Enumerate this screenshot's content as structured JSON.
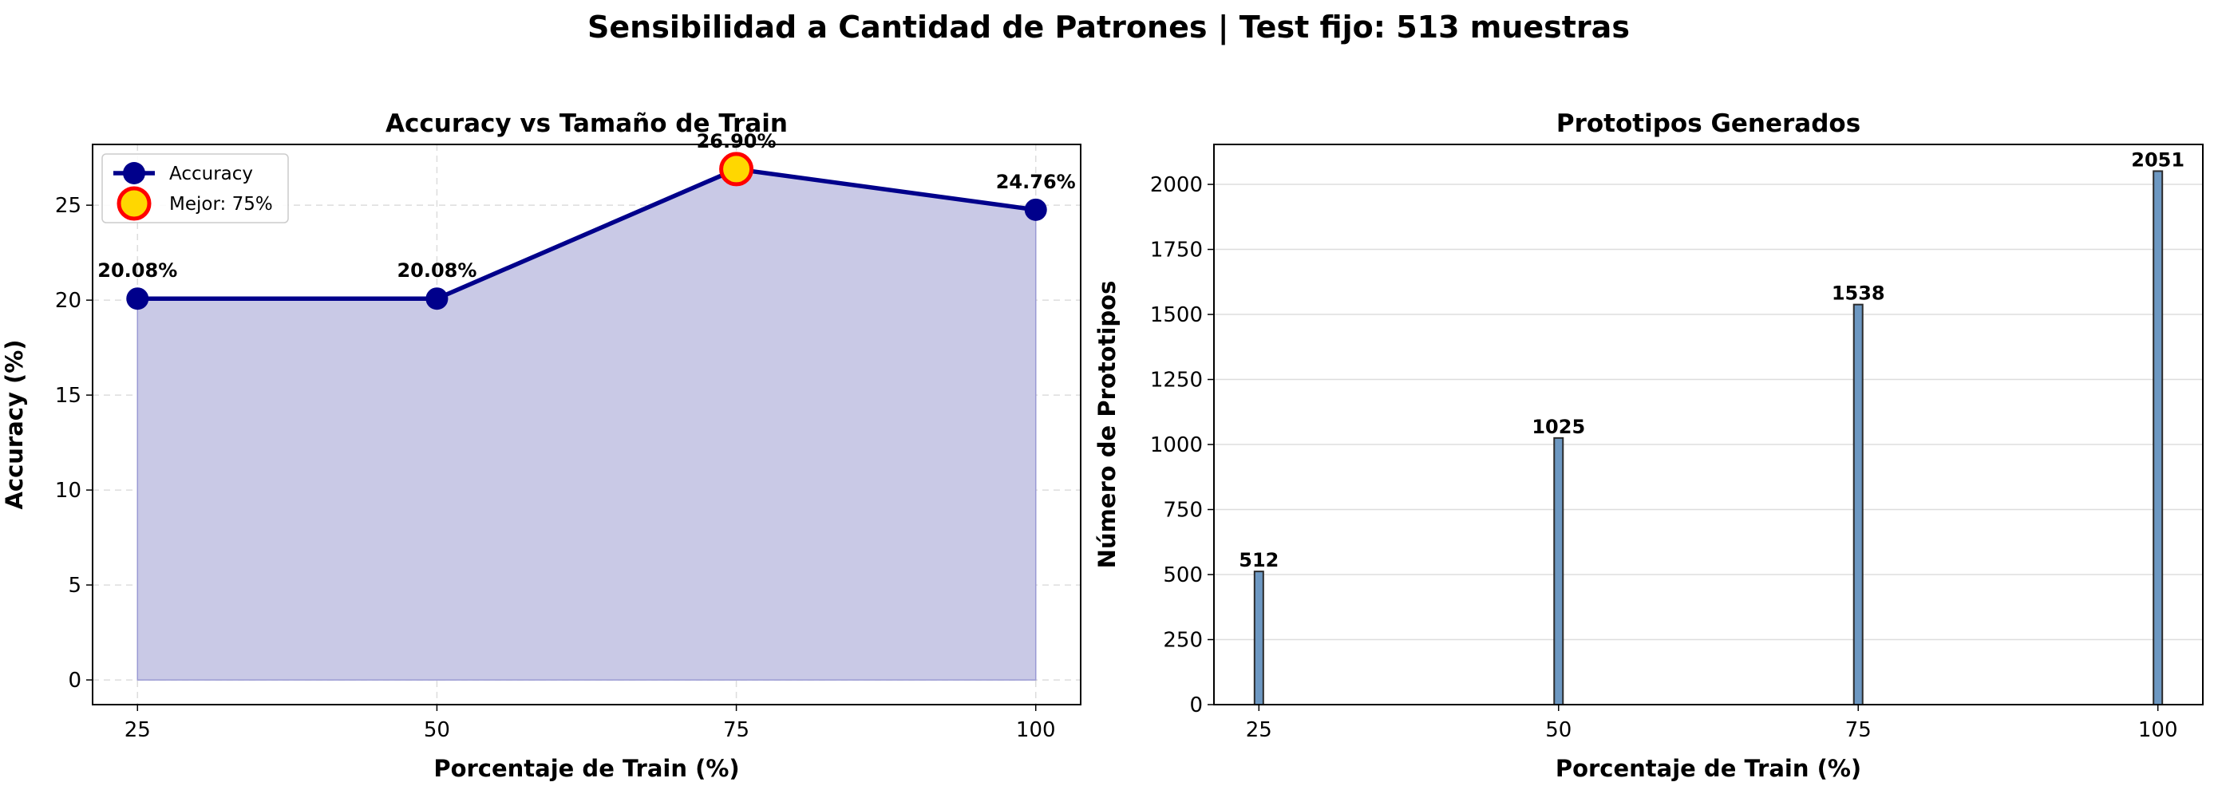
{
  "figure": {
    "suptitle": "Sensibilidad a Cantidad de Patrones | Test fijo: 513 muestras"
  },
  "colors": {
    "line": "#00008b",
    "fill": "#c9c9e6",
    "best_marker_fill": "#ffd700",
    "best_marker_edge": "#ff0000",
    "bar_fill": "#6d98c2",
    "bar_edge": "#2b2b2b",
    "grid": "#dddddd"
  },
  "chart_data": [
    {
      "type": "area",
      "title": "Accuracy vs Tamaño de Train",
      "xlabel": "Porcentaje de Train (%)",
      "ylabel": "Accuracy (%)",
      "x": [
        25,
        50,
        75,
        100
      ],
      "y": [
        20.08,
        20.08,
        26.9,
        24.76
      ],
      "data_labels": [
        "20.08%",
        "20.08%",
        "26.90%",
        "24.76%"
      ],
      "xticks": [
        "25",
        "50",
        "75",
        "100"
      ],
      "yticks": [
        0,
        5,
        10,
        15,
        20,
        25
      ],
      "xlim": [
        21.25,
        103.75
      ],
      "ylim": [
        -1.3,
        28.2
      ],
      "grid": "both, dashed",
      "legend": {
        "placement": "top-left",
        "entries": [
          {
            "label": "Accuracy",
            "marker": "line-circle"
          },
          {
            "label": "Mejor: 75%",
            "marker": "best-circle"
          }
        ]
      },
      "highlight": {
        "x": 75,
        "y": 26.9
      }
    },
    {
      "type": "bar",
      "title": "Prototipos Generados",
      "xlabel": "Porcentaje de Train (%)",
      "ylabel": "Número de Prototipos",
      "x": [
        25,
        50,
        75,
        100
      ],
      "values": [
        512,
        1025,
        1538,
        2051
      ],
      "data_labels": [
        "512",
        "1025",
        "1538",
        "2051"
      ],
      "xticks": [
        "25",
        "50",
        "75",
        "100"
      ],
      "yticks": [
        0,
        250,
        500,
        750,
        1000,
        1250,
        1500,
        1750,
        2000
      ],
      "xlim": [
        21.25,
        103.75
      ],
      "ylim": [
        0,
        2153.55
      ],
      "grid": "y"
    }
  ]
}
